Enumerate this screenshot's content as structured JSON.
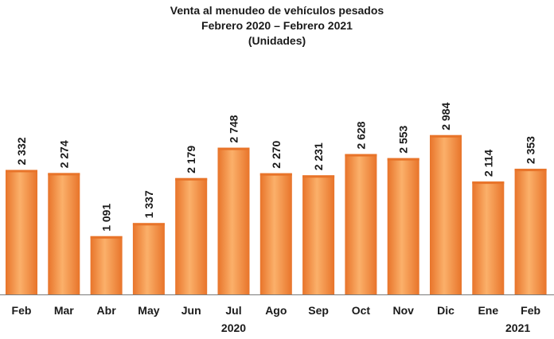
{
  "chart_data": {
    "type": "bar",
    "title": "Venta al menudeo de vehículos pesados",
    "subtitle": "Febrero 2020 – Febrero 2021",
    "units": "(Unidades)",
    "categories": [
      "Feb",
      "Mar",
      "Abr",
      "May",
      "Jun",
      "Jul",
      "Ago",
      "Sep",
      "Oct",
      "Nov",
      "Dic",
      "Ene",
      "Feb"
    ],
    "values": [
      2332,
      2274,
      1091,
      1337,
      2179,
      2748,
      2270,
      2231,
      2628,
      2553,
      2984,
      2114,
      2353
    ],
    "value_labels": [
      "2 332",
      "2 274",
      "1 091",
      "1 337",
      "2 179",
      "2 748",
      "2 270",
      "2 231",
      "2 628",
      "2 553",
      "2 984",
      "2 114",
      "2 353"
    ],
    "year_labels": [
      {
        "text": "2020",
        "category_index": 5
      },
      {
        "text": "2021",
        "category_index": 12
      }
    ],
    "ylim": [
      0,
      3800
    ],
    "grid": false,
    "legend": "none",
    "bar_color_light": "#fbb06a",
    "bar_color_dark": "#e8742a",
    "axis_color": "#7a7a7a"
  }
}
